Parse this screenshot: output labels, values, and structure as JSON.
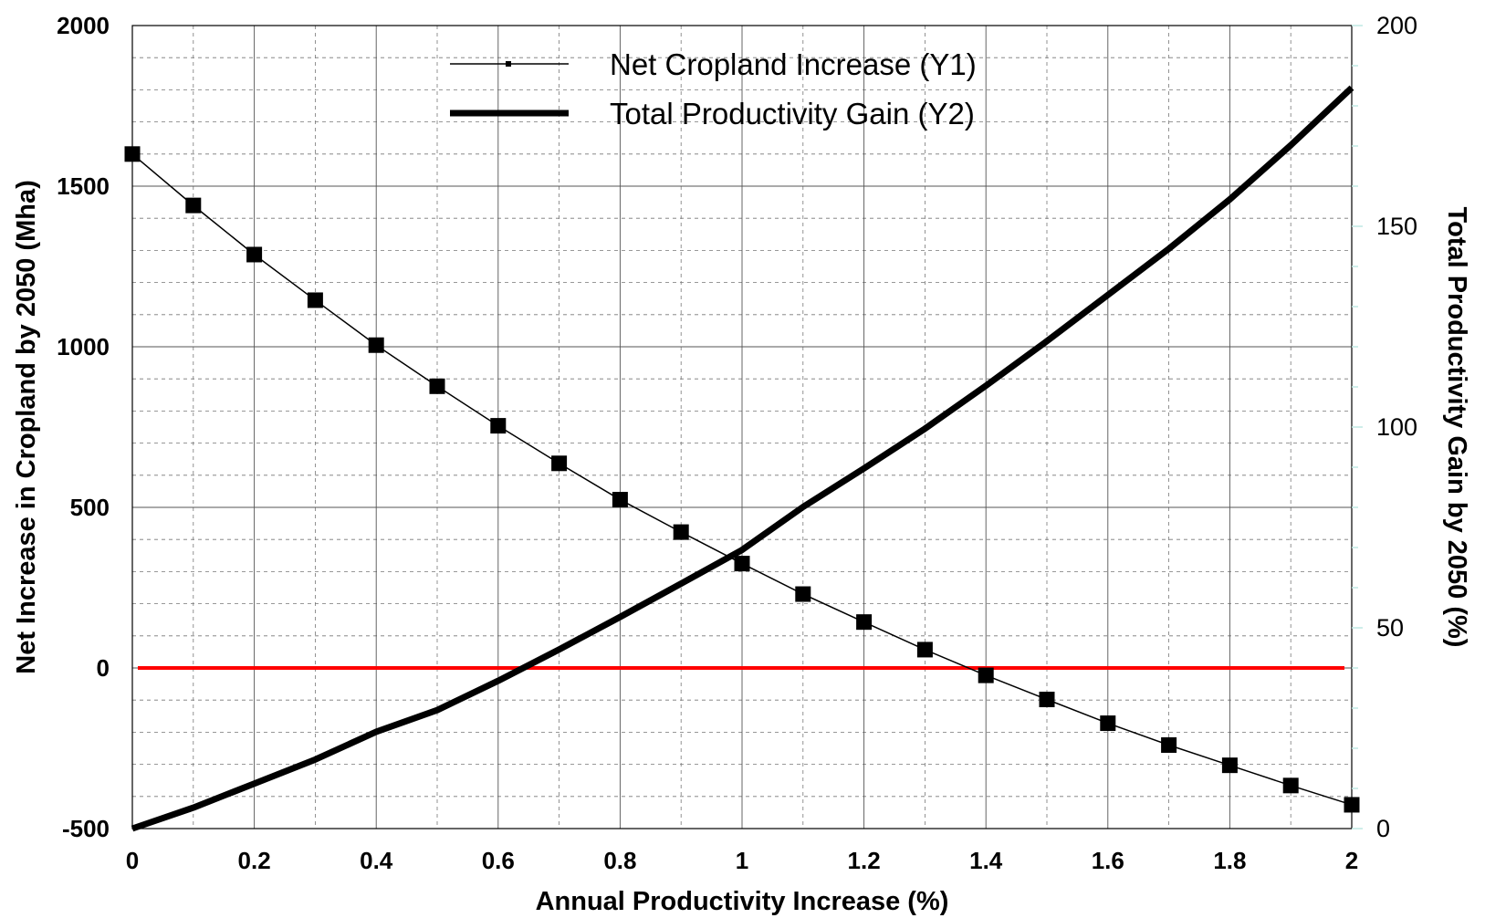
{
  "chart_data": {
    "type": "line",
    "xlabel": "Annual Productivity Increase (%)",
    "ylabel": "Net Increase in Cropland by 2050 (Mha)",
    "y2label": "Total Productivity Gain by 2050 (%)",
    "xlim": [
      0,
      2
    ],
    "ylim": [
      -500,
      2000
    ],
    "y2lim": [
      0,
      200
    ],
    "x_ticks": [
      "0",
      "0.2",
      "0.4",
      "0.6",
      "0.8",
      "1",
      "1.2",
      "1.4",
      "1.6",
      "1.8",
      "2"
    ],
    "y_ticks": [
      "-500",
      "0",
      "500",
      "1000",
      "1500",
      "2000"
    ],
    "y2_ticks": [
      "0",
      "50",
      "100",
      "150",
      "200"
    ],
    "grid": true,
    "legend_position": "top-center",
    "x": [
      0,
      0.1,
      0.2,
      0.3,
      0.4,
      0.5,
      0.6,
      0.7,
      0.8,
      0.9,
      1.0,
      1.1,
      1.2,
      1.3,
      1.4,
      1.5,
      1.6,
      1.7,
      1.8,
      1.9,
      2.0
    ],
    "series": [
      {
        "name": "Net Cropland Increase (Y1)",
        "axis": "left",
        "color": "#000000",
        "marker": "square",
        "values": [
          1600,
          1440,
          1287,
          1145,
          1005,
          877,
          754,
          637,
          524,
          423,
          325,
          230,
          143,
          57,
          -23,
          -98,
          -172,
          -240,
          -303,
          -366,
          -426
        ]
      },
      {
        "name": "Total Productivity Gain (Y2)",
        "axis": "right",
        "color": "#000000",
        "marker": "none",
        "values": [
          0,
          5.2,
          11.2,
          17.2,
          24.1,
          29.5,
          36.8,
          44.6,
          52.7,
          61,
          69.4,
          80.1,
          89.7,
          99.6,
          110.3,
          121.4,
          132.9,
          144.4,
          156.7,
          170.2,
          184.5
        ]
      }
    ],
    "reference_line": {
      "axis": "left",
      "value": 0,
      "color": "#ff0000"
    }
  }
}
